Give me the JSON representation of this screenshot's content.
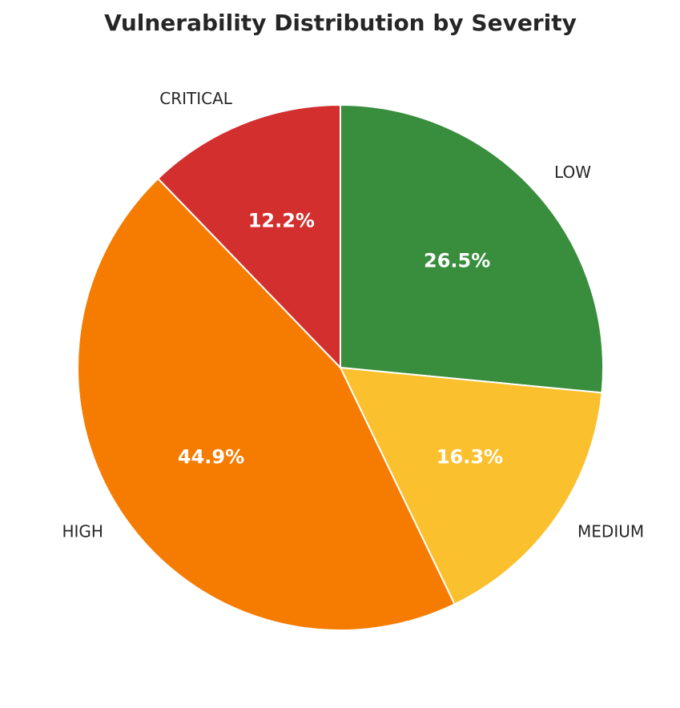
{
  "chart_data": {
    "type": "pie",
    "title": "Vulnerability Distribution by Severity",
    "start_angle_deg": 90,
    "direction": "clockwise",
    "slices": [
      {
        "label": "LOW",
        "value": 26.5,
        "pct_label": "26.5%",
        "color": "#388e3c"
      },
      {
        "label": "MEDIUM",
        "value": 16.3,
        "pct_label": "16.3%",
        "color": "#fbc02d"
      },
      {
        "label": "HIGH",
        "value": 44.9,
        "pct_label": "44.9%",
        "color": "#f57c00"
      },
      {
        "label": "CRITICAL",
        "value": 12.2,
        "pct_label": "12.2%",
        "color": "#d32f2f"
      }
    ]
  }
}
